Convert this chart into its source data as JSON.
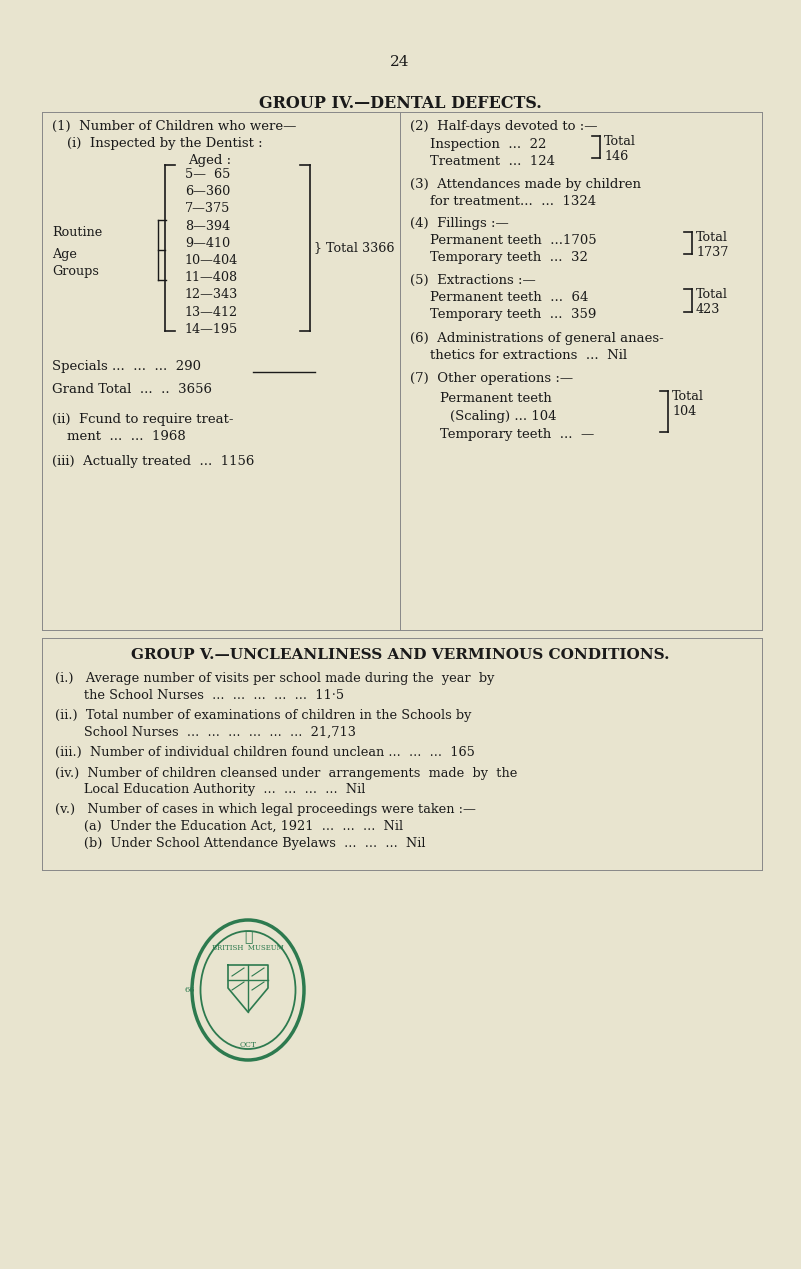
{
  "bg_color": "#e8e4cf",
  "text_color": "#1a1a1a",
  "seal_color": "#2d7a4f",
  "page_num": "24",
  "title": "GROUP IV.—DENTAL DEFECTS.",
  "group5_title": "GROUP V.—UNCLEANLINESS AND VERMINOUS CONDITIONS.",
  "ages": [
    "5—  65",
    "6—360",
    "7—375",
    "8—394",
    "9—410",
    "10—404",
    "11—408",
    "12—343",
    "13—412",
    "14—195"
  ]
}
